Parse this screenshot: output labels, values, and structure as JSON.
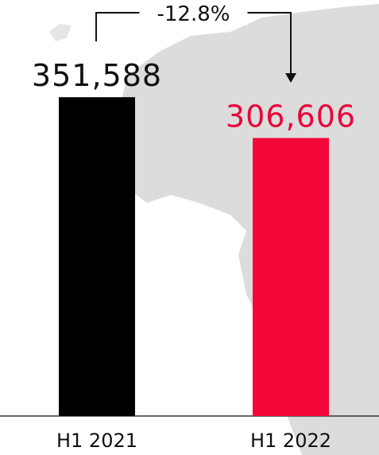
{
  "chart_data": {
    "type": "bar",
    "categories": [
      "H1 2021",
      "H1 2022"
    ],
    "values": [
      351588,
      306606
    ],
    "value_labels": [
      "351,588",
      "306,606"
    ],
    "bar_colors": [
      "#000000",
      "#f5073a"
    ],
    "value_label_colors": [
      "#111111",
      "#e8063a"
    ],
    "change_label": "-12.8%",
    "ylim": [
      0,
      400000
    ],
    "grid": false,
    "background_map_color": "#dcdcdc"
  }
}
